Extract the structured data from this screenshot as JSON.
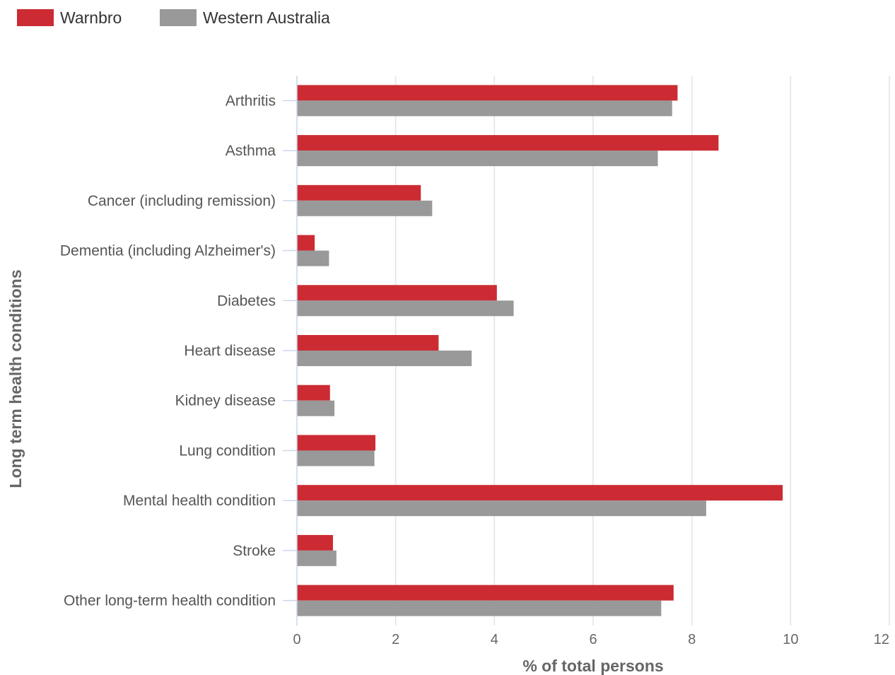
{
  "chart_data": {
    "type": "bar",
    "orientation": "horizontal",
    "categories": [
      "Arthritis",
      "Asthma",
      "Cancer (including remission)",
      "Dementia (including Alzheimer's)",
      "Diabetes",
      "Heart disease",
      "Kidney disease",
      "Lung condition",
      "Mental health condition",
      "Stroke",
      "Other long-term health condition"
    ],
    "series": [
      {
        "name": "Warnbro",
        "color": "#cc2b33",
        "values": [
          7.71,
          8.54,
          2.51,
          0.36,
          4.05,
          2.87,
          0.67,
          1.59,
          9.84,
          0.73,
          7.63
        ]
      },
      {
        "name": "Western Australia",
        "color": "#999999",
        "values": [
          7.6,
          7.31,
          2.74,
          0.65,
          4.39,
          3.54,
          0.76,
          1.57,
          8.29,
          0.8,
          7.38
        ]
      }
    ],
    "xlabel": "% of total persons",
    "ylabel": "Long term health conditions",
    "xlim": [
      0,
      12
    ],
    "xticks": [
      0,
      2,
      4,
      6,
      8,
      10,
      12
    ],
    "grid": true,
    "legend_position": "top-left"
  }
}
